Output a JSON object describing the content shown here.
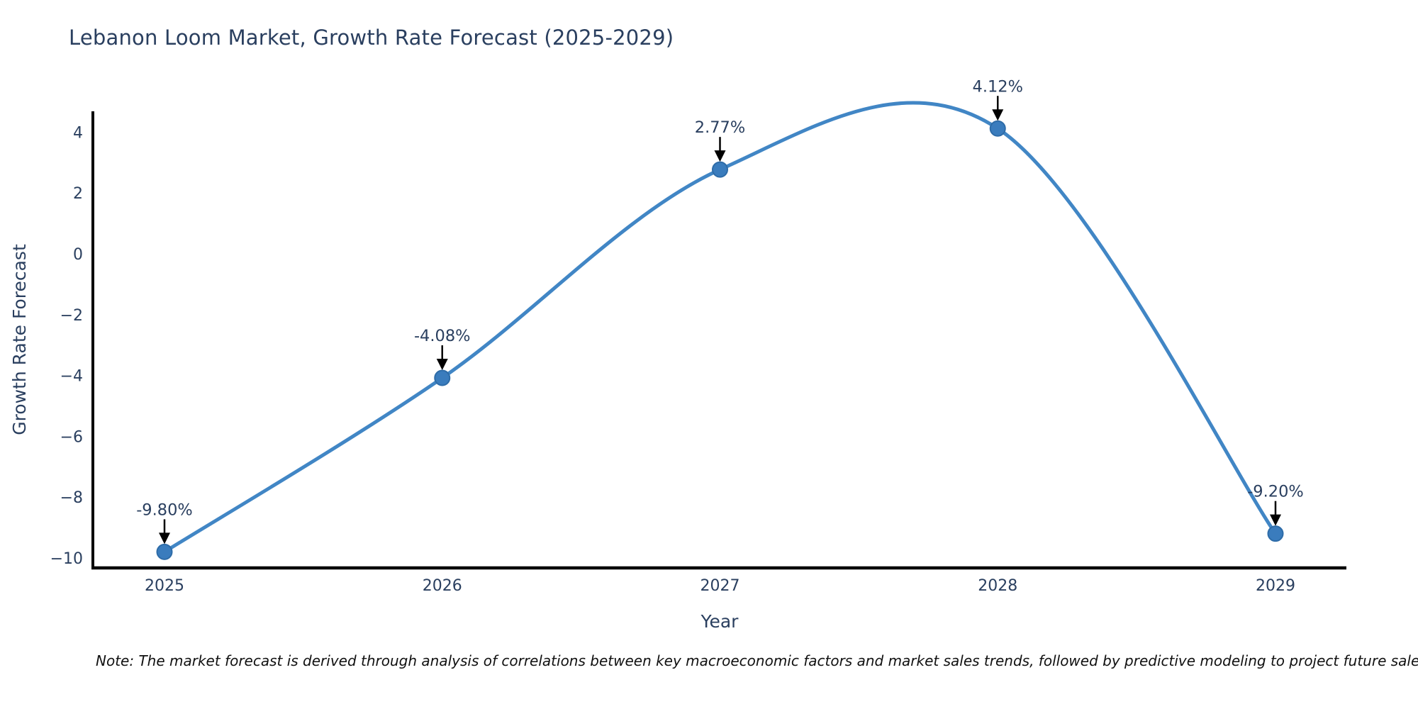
{
  "title": "Lebanon Loom Market, Growth Rate Forecast (2025-2029)",
  "note": "Note: The market forecast is derived through analysis of correlations between key macroeconomic factors and market sales trends, followed by predictive modeling to project future sales.",
  "chart_data": {
    "type": "line",
    "title": "Lebanon Loom Market, Growth Rate Forecast (2025-2029)",
    "xlabel": "Year",
    "ylabel": "Growth Rate Forecast",
    "categories": [
      "2025",
      "2026",
      "2027",
      "2028",
      "2029"
    ],
    "values": [
      -9.8,
      -4.08,
      2.77,
      4.12,
      -9.2
    ],
    "point_labels": [
      "-9.80%",
      "-4.08%",
      "2.77%",
      "4.12%",
      "-9.20%"
    ],
    "y_ticks": [
      4,
      2,
      0,
      -2,
      -4,
      -6,
      -8,
      -10
    ],
    "ylim": [
      -10.3,
      4.7
    ],
    "grid": false,
    "legend_position": "none",
    "line_shape": "spline",
    "annotations_have_arrows": true,
    "colors": {
      "line": "#4186c5",
      "marker_fill": "#3a7cbd",
      "marker_edge": "#2e6ca8",
      "axis_line": "#000000",
      "text": "#2a3f5f",
      "arrow": "#000000",
      "note_text": "#111111",
      "background": "#ffffff"
    }
  }
}
